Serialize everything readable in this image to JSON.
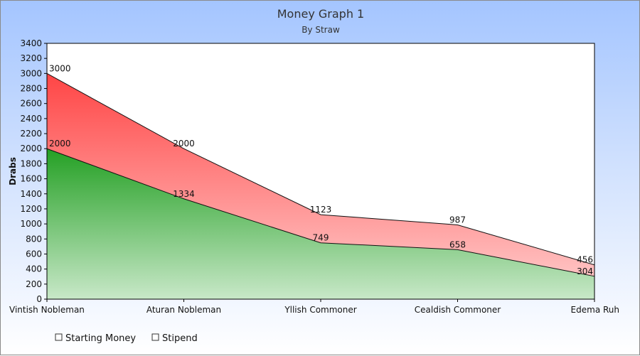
{
  "chart_data": {
    "type": "area",
    "title": "Money Graph 1",
    "subtitle": "By Straw",
    "xlabel": "",
    "ylabel": "Drabs",
    "ylim": [
      0,
      3400
    ],
    "y_tick_step": 200,
    "grid": false,
    "legend_position": "bottom-left",
    "stacked": true,
    "categories": [
      "Vintish Nobleman",
      "Aturan Nobleman",
      "Yllish Commoner",
      "Cealdish Commoner",
      "Edema Ruh"
    ],
    "series": [
      {
        "name": "Starting Money",
        "values": [
          2000,
          1334,
          749,
          658,
          304
        ],
        "color": "#2a9f2a"
      },
      {
        "name": "Stipend",
        "values": [
          1000,
          666,
          374,
          329,
          152
        ],
        "color": "#ff4a4a"
      }
    ],
    "data_labels": {
      "Starting Money": [
        "2000",
        "1334",
        "749",
        "658",
        "304"
      ],
      "Stipend": [
        "3000",
        "2000",
        "1123",
        "987",
        "456"
      ]
    }
  }
}
